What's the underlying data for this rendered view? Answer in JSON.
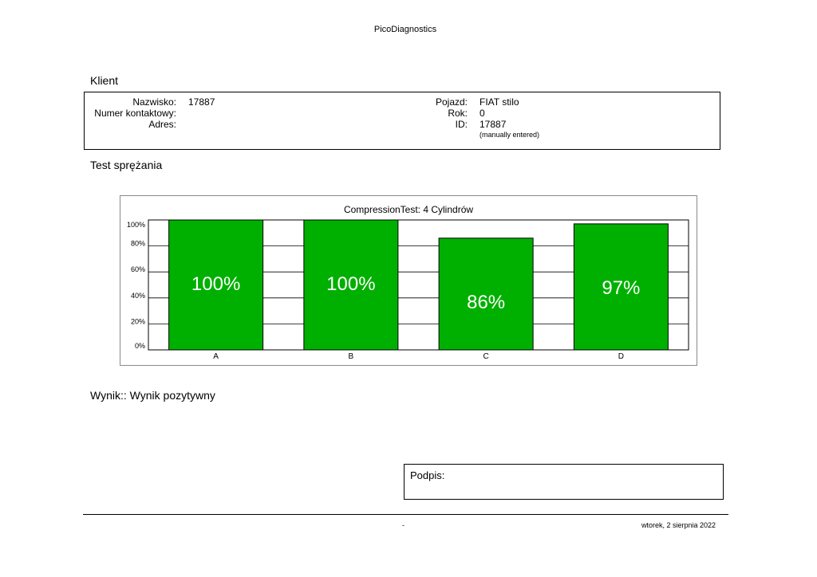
{
  "header": {
    "app_title": "PicoDiagnostics"
  },
  "client_section": {
    "heading": "Klient",
    "surname_label": "Nazwisko:",
    "surname_value": "17887",
    "contact_label": "Numer kontaktowy:",
    "contact_value": "",
    "address_label": "Adres:",
    "address_value": "",
    "vehicle_label": "Pojazd:",
    "vehicle_value": "FIAT stilo",
    "year_label": "Rok:",
    "year_value": "0",
    "id_label": "ID:",
    "id_value": "17887",
    "id_note": "(manually entered)"
  },
  "test_section": {
    "heading": "Test sprężania"
  },
  "chart_data": {
    "type": "bar",
    "title": "CompressionTest: 4 Cylindrów",
    "categories": [
      "A",
      "B",
      "C",
      "D"
    ],
    "values": [
      100,
      100,
      86,
      97
    ],
    "value_labels": [
      "100%",
      "100%",
      "86%",
      "97%"
    ],
    "y_ticks": [
      "0%",
      "20%",
      "40%",
      "60%",
      "80%",
      "100%"
    ],
    "ylim": [
      0,
      100
    ],
    "xlabel": "",
    "ylabel": "",
    "grid": true,
    "legend": "none",
    "bar_color": "#00b000"
  },
  "result": {
    "label": "Wynik::",
    "value": "Wynik pozytywny"
  },
  "signature": {
    "label": "Podpis:"
  },
  "footer": {
    "dash": "-",
    "date": "wtorek, 2 sierpnia 2022"
  }
}
